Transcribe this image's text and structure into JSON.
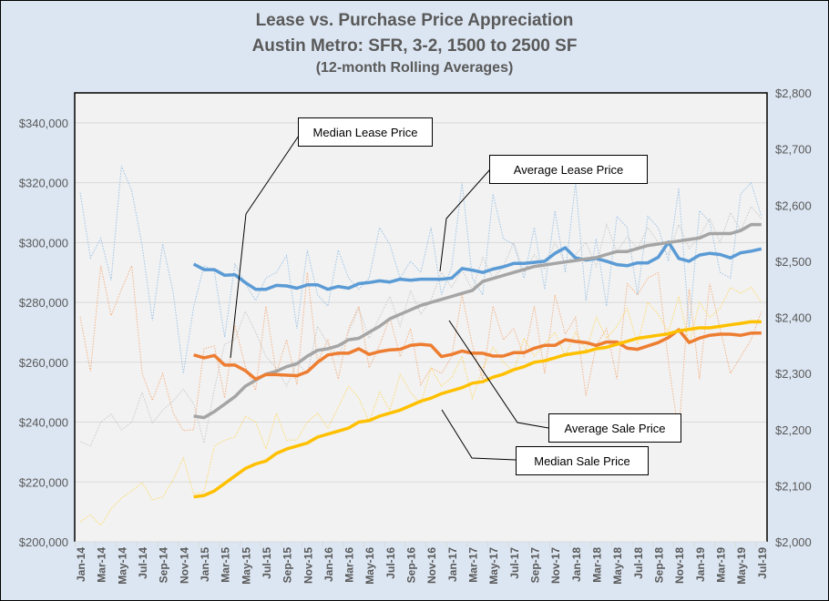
{
  "chart_data": {
    "type": "line",
    "title": "Lease vs. Purchase Price Appreciation",
    "subtitle": "Austin Metro:  SFR, 3-2, 1500 to 2500 SF",
    "subtitle2": "(12-month Rolling Averages)",
    "x_start": "2014-01",
    "x_end": "2019-07",
    "x_tick_labels": [
      "Jan-14",
      "Mar-14",
      "May-14",
      "Jul-14",
      "Sep-14",
      "Nov-14",
      "Jan-15",
      "Mar-15",
      "May-15",
      "Jul-15",
      "Sep-15",
      "Nov-15",
      "Jan-16",
      "Mar-16",
      "May-16",
      "Jul-16",
      "Sep-16",
      "Nov-16",
      "Jan-17",
      "Mar-17",
      "May-17",
      "Jul-17",
      "Sep-17",
      "Nov-17",
      "Jan-18",
      "Mar-18",
      "May-18",
      "Jul-18",
      "Sep-18",
      "Nov-18",
      "Jan-19",
      "Mar-19",
      "May-19",
      "Jul-19"
    ],
    "y_left": {
      "min": 200000,
      "max": 350000,
      "ticks": [
        "$200,000",
        "$220,000",
        "$240,000",
        "$260,000",
        "$280,000",
        "$300,000",
        "$320,000",
        "$340,000"
      ]
    },
    "y_right": {
      "min": 2000,
      "max": 2800,
      "ticks": [
        "$2,000",
        "$2,100",
        "$2,200",
        "$2,300",
        "$2,400",
        "$2,500",
        "$2,600",
        "$2,700",
        "$2,800"
      ]
    },
    "grid": true,
    "legend": "callouts",
    "annotations": {
      "median_lease": "Median Lease Price",
      "average_lease": "Average Lease Price",
      "average_sale": "Average Sale Price",
      "median_sale": "Median Sale Price"
    },
    "series": [
      {
        "key": "average_lease",
        "name": "Average Lease Price",
        "axis": "right",
        "style": "rolling",
        "color": "#5b9bd5",
        "start": "2014-12",
        "values": [
          2495,
          2485,
          2485,
          2475,
          2476,
          2462,
          2450,
          2450,
          2457,
          2456,
          2452,
          2458,
          2458,
          2450,
          2455,
          2452,
          2460,
          2462,
          2465,
          2463,
          2468,
          2466,
          2468,
          2468,
          2468,
          2470,
          2487,
          2484,
          2480,
          2486,
          2490,
          2496,
          2496,
          2498,
          2500,
          2514,
          2524,
          2506,
          2502,
          2505,
          2500,
          2494,
          2492,
          2497,
          2497,
          2507,
          2534,
          2505,
          2500,
          2511,
          2514,
          2512,
          2506,
          2515,
          2518,
          2522
        ]
      },
      {
        "key": "average_sale",
        "name": "Average Sale Price",
        "axis": "left",
        "style": "rolling",
        "color": "#a5a5a5",
        "start": "2014-12",
        "values": [
          242000,
          241500,
          243500,
          246000,
          248500,
          252000,
          254000,
          256000,
          257000,
          258500,
          259500,
          262000,
          264000,
          264500,
          265500,
          267500,
          268000,
          270000,
          272000,
          274500,
          276000,
          277500,
          279000,
          280000,
          281000,
          282000,
          283000,
          284000,
          287000,
          288000,
          289000,
          290000,
          291000,
          292000,
          292500,
          293000,
          293500,
          294000,
          294500,
          295000,
          296000,
          297000,
          297000,
          298000,
          299000,
          299500,
          300000,
          300500,
          301000,
          301500,
          303000,
          303000,
          303000,
          304000,
          306000,
          306000
        ]
      },
      {
        "key": "median_lease",
        "name": "Median Lease Price",
        "axis": "right",
        "style": "rolling",
        "color": "#ed7d31",
        "start": "2014-12",
        "values": [
          2333,
          2328,
          2332,
          2315,
          2315,
          2305,
          2290,
          2298,
          2298,
          2297,
          2296,
          2303,
          2320,
          2333,
          2336,
          2336,
          2344,
          2334,
          2339,
          2342,
          2343,
          2350,
          2352,
          2350,
          2330,
          2334,
          2340,
          2336,
          2336,
          2331,
          2331,
          2337,
          2337,
          2345,
          2350,
          2350,
          2360,
          2357,
          2355,
          2350,
          2356,
          2356,
          2345,
          2343,
          2349,
          2355,
          2364,
          2378,
          2355,
          2363,
          2368,
          2370,
          2370,
          2368,
          2372,
          2372
        ]
      },
      {
        "key": "median_sale",
        "name": "Median Sale Price",
        "axis": "left",
        "style": "rolling",
        "color": "#ffc000",
        "start": "2014-12",
        "values": [
          215000,
          215500,
          217000,
          219500,
          222000,
          224500,
          226000,
          227000,
          229500,
          231000,
          232000,
          233000,
          235000,
          236000,
          237000,
          238000,
          240000,
          240500,
          242000,
          243000,
          244000,
          245500,
          247000,
          248000,
          249500,
          250500,
          251500,
          253000,
          253500,
          255000,
          256000,
          257500,
          258500,
          260000,
          260500,
          261500,
          262500,
          263000,
          263500,
          264500,
          265000,
          266000,
          267000,
          268000,
          268500,
          269000,
          269500,
          270500,
          271000,
          271500,
          271500,
          272000,
          272500,
          273000,
          273500,
          273500
        ]
      },
      {
        "key": "average_lease_monthly",
        "axis": "right",
        "style": "monthly",
        "color": "#9dc3e6",
        "start": "2014-01",
        "values": [
          2622,
          2506,
          2541,
          2466,
          2670,
          2625,
          2528,
          2394,
          2531,
          2446,
          2300,
          2419,
          2492,
          2482,
          2365,
          2495,
          2460,
          2430,
          2470,
          2480,
          2510,
          2380,
          2520,
          2440,
          2420,
          2520,
          2470,
          2450,
          2470,
          2560,
          2530,
          2470,
          2500,
          2480,
          2560,
          2440,
          2490,
          2640,
          2470,
          2440,
          2620,
          2540,
          2530,
          2470,
          2560,
          2450,
          2590,
          2480,
          2640,
          2430,
          2540,
          2420,
          2580,
          2560,
          2440,
          2580,
          2560,
          2500,
          2630,
          2380,
          2590,
          2570,
          2480,
          2470,
          2620,
          2640,
          2580
        ]
      },
      {
        "key": "average_sale_monthly",
        "axis": "left",
        "style": "monthly",
        "color": "#c9c9c9",
        "start": "2014-01",
        "values": [
          233500,
          232000,
          240000,
          242600,
          237400,
          240000,
          250000,
          239600,
          244000,
          247000,
          251000,
          246000,
          233000,
          251000,
          266000,
          267600,
          277000,
          270000,
          262000,
          258000,
          252000,
          260000,
          256000,
          272000,
          266000,
          262000,
          270000,
          278000,
          268000,
          275000,
          282000,
          272000,
          284000,
          276000,
          281000,
          290000,
          285000,
          291000,
          284000,
          295000,
          288000,
          292000,
          300000,
          290000,
          296000,
          291000,
          300000,
          293000,
          296000,
          300000,
          292000,
          306000,
          297000,
          302000,
          298000,
          305000,
          300000,
          296000,
          306000,
          298000,
          302000,
          308000,
          300000,
          310000,
          304000,
          312000,
          308000
        ]
      },
      {
        "key": "median_lease_monthly",
        "axis": "right",
        "style": "monthly",
        "color": "#f4b183",
        "start": "2014-01",
        "values": [
          2401,
          2304,
          2492,
          2403,
          2450,
          2492,
          2300,
          2252,
          2300,
          2230,
          2198,
          2200,
          2344,
          2349,
          2256,
          2386,
          2312,
          2270,
          2420,
          2300,
          2360,
          2280,
          2480,
          2320,
          2360,
          2290,
          2380,
          2420,
          2310,
          2350,
          2400,
          2330,
          2380,
          2280,
          2310,
          2300,
          2330,
          2440,
          2350,
          2290,
          2420,
          2360,
          2380,
          2330,
          2420,
          2300,
          2440,
          2370,
          2400,
          2260,
          2350,
          2380,
          2290,
          2460,
          2440,
          2470,
          2480,
          2320,
          2190,
          2450,
          2290,
          2460,
          2380,
          2300,
          2330,
          2360,
          2410
        ]
      },
      {
        "key": "median_sale_monthly",
        "axis": "left",
        "style": "monthly",
        "color": "#ffd966",
        "start": "2014-01",
        "values": [
          206700,
          209000,
          205500,
          211000,
          214600,
          217000,
          219800,
          214000,
          215000,
          220700,
          228000,
          216000,
          216700,
          232000,
          234000,
          235000,
          242000,
          240000,
          231000,
          243000,
          234000,
          234000,
          240000,
          243000,
          238000,
          245000,
          252000,
          248000,
          240000,
          250000,
          244000,
          256000,
          250000,
          246000,
          258000,
          252000,
          255000,
          262000,
          248000,
          258000,
          265000,
          260000,
          257000,
          268000,
          262000,
          266000,
          270000,
          262000,
          270000,
          264000,
          275000,
          268000,
          272000,
          278000,
          266000,
          280000,
          276000,
          270000,
          282000,
          266000,
          280000,
          275000,
          278000,
          285000,
          283000,
          285000,
          280000
        ]
      }
    ]
  }
}
